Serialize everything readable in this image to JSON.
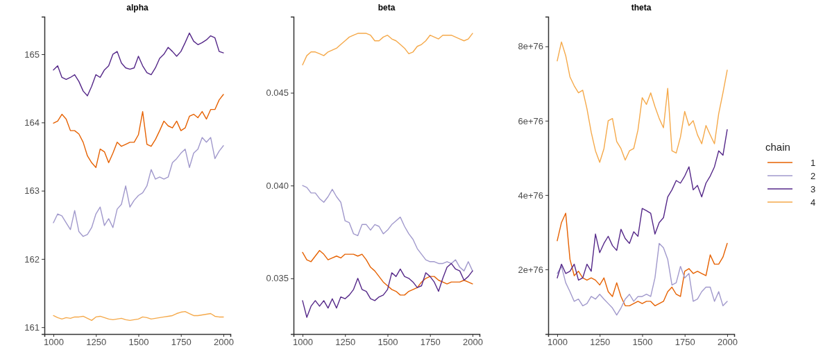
{
  "chart_data": [
    {
      "type": "line",
      "title": "alpha",
      "x": [
        1000,
        1025,
        1050,
        1075,
        1100,
        1125,
        1150,
        1175,
        1200,
        1225,
        1250,
        1275,
        1300,
        1325,
        1350,
        1375,
        1400,
        1425,
        1450,
        1475,
        1500,
        1525,
        1550,
        1575,
        1600,
        1625,
        1650,
        1675,
        1700,
        1725,
        1750,
        1775,
        1800,
        1825,
        1850,
        1875,
        1900,
        1925,
        1950,
        1975,
        2000
      ],
      "xlim": [
        947,
        2041
      ],
      "xticks": [
        1000,
        1250,
        1500,
        1750,
        2000
      ],
      "ylim": [
        160.9,
        165.55
      ],
      "yticks": [
        161,
        162,
        163,
        164,
        165
      ],
      "series": [
        {
          "color": "#e66101",
          "values": [
            163.99,
            164.02,
            164.12,
            164.05,
            163.88,
            163.88,
            163.83,
            163.71,
            163.51,
            163.41,
            163.34,
            163.61,
            163.57,
            163.41,
            163.55,
            163.71,
            163.65,
            163.68,
            163.71,
            163.71,
            163.82,
            164.16,
            163.68,
            163.65,
            163.75,
            163.88,
            164.02,
            163.95,
            163.92,
            164.02,
            163.88,
            163.92,
            164.09,
            164.12,
            164.07,
            164.16,
            164.05,
            164.19,
            164.19,
            164.33,
            164.41
          ]
        },
        {
          "color": "#a199cc",
          "values": [
            162.53,
            162.66,
            162.63,
            162.53,
            162.43,
            162.71,
            162.4,
            162.33,
            162.36,
            162.46,
            162.66,
            162.76,
            162.49,
            162.59,
            162.46,
            162.73,
            162.8,
            163.07,
            162.76,
            162.86,
            162.93,
            162.97,
            163.07,
            163.31,
            163.17,
            163.2,
            163.17,
            163.2,
            163.41,
            163.47,
            163.55,
            163.61,
            163.34,
            163.55,
            163.61,
            163.78,
            163.71,
            163.78,
            163.47,
            163.58,
            163.66
          ]
        },
        {
          "color": "#542788",
          "values": [
            164.77,
            164.83,
            164.66,
            164.63,
            164.66,
            164.7,
            164.6,
            164.46,
            164.39,
            164.53,
            164.7,
            164.66,
            164.77,
            164.83,
            165.0,
            165.04,
            164.87,
            164.8,
            164.78,
            164.8,
            164.97,
            164.83,
            164.73,
            164.7,
            164.8,
            164.94,
            165.0,
            165.1,
            165.04,
            164.97,
            165.04,
            165.17,
            165.31,
            165.19,
            165.14,
            165.17,
            165.21,
            165.27,
            165.24,
            165.04,
            165.02
          ]
        },
        {
          "color": "#f5a94a",
          "values": [
            161.17,
            161.14,
            161.12,
            161.14,
            161.13,
            161.15,
            161.15,
            161.16,
            161.13,
            161.1,
            161.15,
            161.16,
            161.14,
            161.12,
            161.11,
            161.12,
            161.13,
            161.11,
            161.1,
            161.11,
            161.12,
            161.15,
            161.14,
            161.12,
            161.13,
            161.14,
            161.15,
            161.16,
            161.17,
            161.2,
            161.22,
            161.23,
            161.2,
            161.17,
            161.17,
            161.18,
            161.19,
            161.2,
            161.16,
            161.15,
            161.15
          ]
        }
      ]
    },
    {
      "type": "line",
      "title": "beta",
      "x": [
        1000,
        1025,
        1050,
        1075,
        1100,
        1125,
        1150,
        1175,
        1200,
        1225,
        1250,
        1275,
        1300,
        1325,
        1350,
        1375,
        1400,
        1425,
        1450,
        1475,
        1500,
        1525,
        1550,
        1575,
        1600,
        1625,
        1650,
        1675,
        1700,
        1725,
        1750,
        1775,
        1800,
        1825,
        1850,
        1875,
        1900,
        1925,
        1950,
        1975,
        2000
      ],
      "xlim": [
        947,
        2041
      ],
      "xticks": [
        1000,
        1250,
        1500,
        1750,
        2000
      ],
      "ylim": [
        0.032,
        0.0491
      ],
      "yticks": [
        {
          "value": 0.035,
          "label": "0.035"
        },
        {
          "value": 0.04,
          "label": "0.040"
        },
        {
          "value": 0.045,
          "label": "0.045"
        }
      ],
      "series": [
        {
          "color": "#e66101",
          "values": [
            0.0364,
            0.036,
            0.0359,
            0.0362,
            0.0365,
            0.0363,
            0.036,
            0.0361,
            0.0362,
            0.0361,
            0.0363,
            0.0363,
            0.0363,
            0.0362,
            0.0363,
            0.036,
            0.0356,
            0.0354,
            0.0351,
            0.0348,
            0.0346,
            0.0344,
            0.0343,
            0.0341,
            0.0341,
            0.0343,
            0.0344,
            0.0345,
            0.0348,
            0.035,
            0.0351,
            0.0351,
            0.0349,
            0.0348,
            0.0347,
            0.0348,
            0.0348,
            0.0348,
            0.0349,
            0.0348,
            0.0347
          ]
        },
        {
          "color": "#a199cc",
          "values": [
            0.04,
            0.0399,
            0.0396,
            0.0396,
            0.0393,
            0.0391,
            0.0394,
            0.0398,
            0.0394,
            0.0391,
            0.0381,
            0.038,
            0.0374,
            0.0373,
            0.0379,
            0.0379,
            0.0376,
            0.0379,
            0.0378,
            0.0374,
            0.0376,
            0.0379,
            0.0381,
            0.0383,
            0.0378,
            0.0374,
            0.0371,
            0.0366,
            0.0363,
            0.036,
            0.0359,
            0.0359,
            0.0358,
            0.0358,
            0.0359,
            0.0358,
            0.036,
            0.0356,
            0.0354,
            0.0359,
            0.0354
          ]
        },
        {
          "color": "#542788",
          "values": [
            0.0338,
            0.0329,
            0.0335,
            0.0338,
            0.0335,
            0.0338,
            0.0334,
            0.0339,
            0.0334,
            0.034,
            0.0339,
            0.0341,
            0.0344,
            0.035,
            0.0344,
            0.0343,
            0.0339,
            0.0338,
            0.034,
            0.0341,
            0.0344,
            0.0353,
            0.0351,
            0.0355,
            0.0351,
            0.035,
            0.0348,
            0.0345,
            0.0346,
            0.0353,
            0.0351,
            0.0348,
            0.0343,
            0.035,
            0.0356,
            0.0358,
            0.0355,
            0.0354,
            0.0349,
            0.0351,
            0.0354
          ]
        },
        {
          "color": "#f5a94a",
          "values": [
            0.0465,
            0.047,
            0.0472,
            0.0472,
            0.0471,
            0.047,
            0.0472,
            0.0473,
            0.0474,
            0.0476,
            0.0478,
            0.048,
            0.0481,
            0.0482,
            0.0482,
            0.0482,
            0.0481,
            0.0478,
            0.0478,
            0.048,
            0.0481,
            0.0479,
            0.0478,
            0.0476,
            0.0474,
            0.0471,
            0.0472,
            0.0475,
            0.0476,
            0.0478,
            0.0481,
            0.048,
            0.0479,
            0.0481,
            0.0481,
            0.0481,
            0.048,
            0.0479,
            0.0478,
            0.0479,
            0.0482
          ]
        }
      ]
    },
    {
      "type": "line",
      "title": "theta",
      "legend": "right",
      "legend_title": "chain",
      "x": [
        1000,
        1025,
        1050,
        1075,
        1100,
        1125,
        1150,
        1175,
        1200,
        1225,
        1250,
        1275,
        1300,
        1325,
        1350,
        1375,
        1400,
        1425,
        1450,
        1475,
        1500,
        1525,
        1550,
        1575,
        1600,
        1625,
        1650,
        1675,
        1700,
        1725,
        1750,
        1775,
        1800,
        1825,
        1850,
        1875,
        1900,
        1925,
        1950,
        1975,
        2000
      ],
      "xlim": [
        947,
        2041
      ],
      "xticks": [
        1000,
        1250,
        1500,
        1750,
        2000
      ],
      "ylim": [
        2.6e+75,
        8.8e+76
      ],
      "yticks": [
        {
          "value": 2e+76,
          "label": "2e+76"
        },
        {
          "value": 4e+76,
          "label": "4e+76"
        },
        {
          "value": 6e+76,
          "label": "6e+76"
        },
        {
          "value": 8e+76,
          "label": "8e+76"
        }
      ],
      "series": [
        {
          "name": "1",
          "color": "#e66101",
          "values": [
            2.77e+76,
            3.26e+76,
            3.51e+76,
            2.27e+76,
            1.83e+76,
            1.95e+76,
            1.77e+76,
            1.71e+76,
            1.77e+76,
            1.71e+76,
            1.58e+76,
            1.77e+76,
            1.4e+76,
            1.27e+76,
            1.64e+76,
            1.27e+76,
            1.02e+76,
            1.02e+76,
            1.08e+76,
            1.14e+76,
            1.08e+76,
            1.14e+76,
            1.14e+76,
            1.02e+76,
            1.08e+76,
            1.14e+76,
            1.4e+76,
            1.52e+76,
            1.33e+76,
            1.27e+76,
            1.95e+76,
            2.02e+76,
            1.89e+76,
            1.95e+76,
            1.89e+76,
            1.83e+76,
            2.39e+76,
            2.14e+76,
            2.14e+76,
            2.33e+76,
            2.7e+76
          ]
        },
        {
          "name": "2",
          "color": "#a199cc",
          "values": [
            1.89e+76,
            2.08e+76,
            1.64e+76,
            1.4e+76,
            1.14e+76,
            1.2e+76,
            1.02e+76,
            1.08e+76,
            1.27e+76,
            1.2e+76,
            1.33e+76,
            1.2e+76,
            1.08e+76,
            9.6e+75,
            7.7e+75,
            9.6e+75,
            1.2e+76,
            1.33e+76,
            1.14e+76,
            1.27e+76,
            1.27e+76,
            1.33e+76,
            1.27e+76,
            1.77e+76,
            2.7e+76,
            2.58e+76,
            2.27e+76,
            1.58e+76,
            1.64e+76,
            2.08e+76,
            1.77e+76,
            1.89e+76,
            1.14e+76,
            1.2e+76,
            1.4e+76,
            1.52e+76,
            1.52e+76,
            1.14e+76,
            1.4e+76,
            1.02e+76,
            1.14e+76
          ]
        },
        {
          "name": "3",
          "color": "#542788",
          "values": [
            1.77e+76,
            2.14e+76,
            1.89e+76,
            1.95e+76,
            2.14e+76,
            1.71e+76,
            1.77e+76,
            2.14e+76,
            1.95e+76,
            2.95e+76,
            2.45e+76,
            2.7e+76,
            2.89e+76,
            2.64e+76,
            2.51e+76,
            3.08e+76,
            2.83e+76,
            2.7e+76,
            3.01e+76,
            2.89e+76,
            3.64e+76,
            3.58e+76,
            3.51e+76,
            2.95e+76,
            3.26e+76,
            3.39e+76,
            3.95e+76,
            4.14e+76,
            4.39e+76,
            4.32e+76,
            4.51e+76,
            4.76e+76,
            4.14e+76,
            4.26e+76,
            3.95e+76,
            4.32e+76,
            4.51e+76,
            4.76e+76,
            5.19e+76,
            5.07e+76,
            5.76e+76
          ]
        },
        {
          "name": "4",
          "color": "#f5a94a",
          "values": [
            7.61e+76,
            8.12e+76,
            7.75e+76,
            7.18e+76,
            6.94e+76,
            6.75e+76,
            6.82e+76,
            6.32e+76,
            5.69e+76,
            5.19e+76,
            4.88e+76,
            5.25e+76,
            6e+76,
            6.06e+76,
            5.44e+76,
            5.25e+76,
            4.94e+76,
            5.19e+76,
            5.25e+76,
            5.75e+76,
            6.62e+76,
            6.44e+76,
            6.75e+76,
            6.38e+76,
            6.06e+76,
            5.81e+76,
            6.87e+76,
            5.19e+76,
            5.13e+76,
            5.56e+76,
            6.25e+76,
            5.87e+76,
            6e+76,
            5.62e+76,
            5.38e+76,
            5.87e+76,
            5.62e+76,
            5.38e+76,
            6.19e+76,
            6.75e+76,
            7.36e+76
          ]
        }
      ]
    }
  ]
}
